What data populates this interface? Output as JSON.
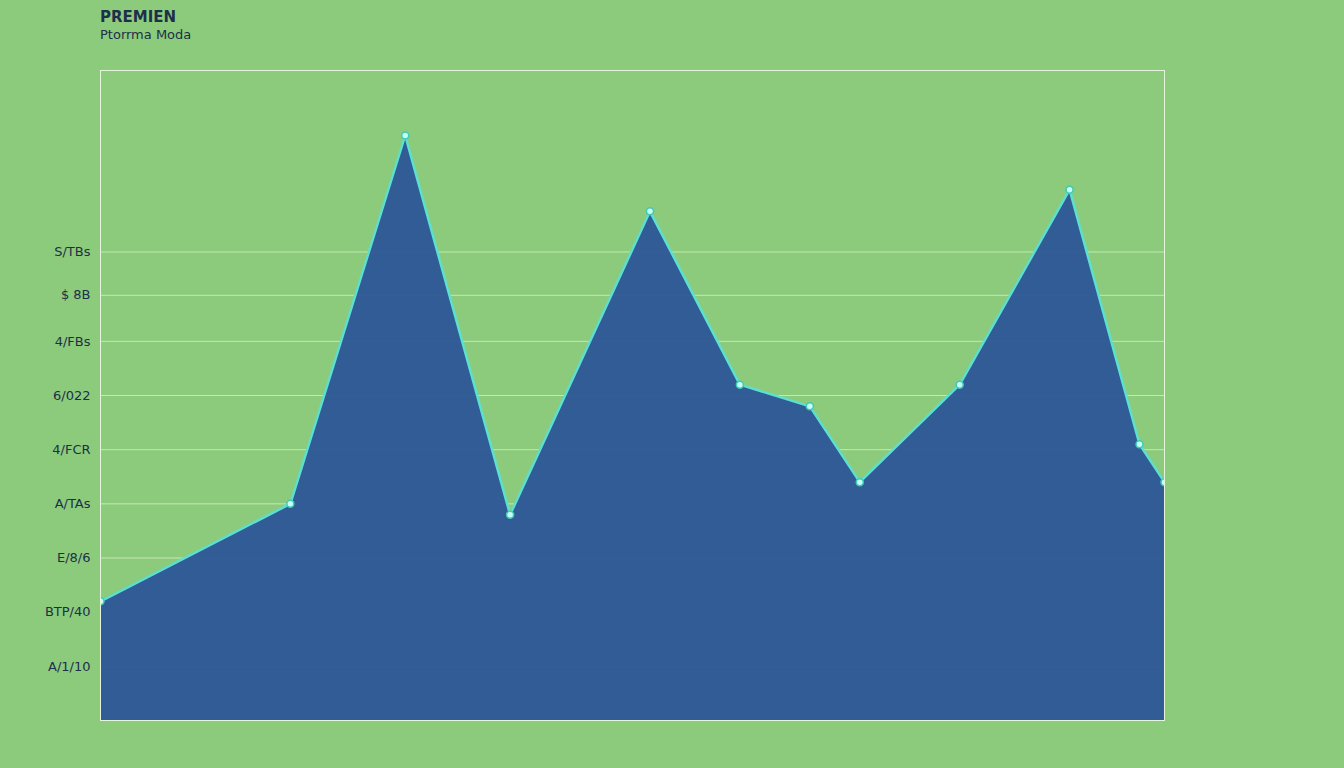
{
  "chart_data": {
    "type": "area",
    "title": "PREMIEN",
    "subtitle": "Ptorrma Moda",
    "x": [
      0,
      1.9,
      3.05,
      4.1,
      5.5,
      6.4,
      7.1,
      7.6,
      8.6,
      9.7,
      10.4,
      10.65
    ],
    "values": [
      2.2,
      4.0,
      10.8,
      3.8,
      9.4,
      6.2,
      5.8,
      4.4,
      6.2,
      9.8,
      5.1,
      4.4
    ],
    "color": "#2d5597",
    "xlim": [
      0,
      10.65
    ],
    "ylim": [
      0,
      12
    ],
    "yticks": [
      {
        "value": 1,
        "label": "A/1/10"
      },
      {
        "value": 2,
        "label": "BTP/40"
      },
      {
        "value": 3,
        "label": "E/8/6"
      },
      {
        "value": 4,
        "label": "A/TAs"
      },
      {
        "value": 5,
        "label": "4/FCR"
      },
      {
        "value": 6,
        "label": "6/022"
      },
      {
        "value": 7,
        "label": "4/FBs"
      },
      {
        "value": 7.85,
        "label": "$ 8B"
      },
      {
        "value": 8.65,
        "label": "S/TBs"
      }
    ],
    "grid": true,
    "tick_labels": "y"
  }
}
